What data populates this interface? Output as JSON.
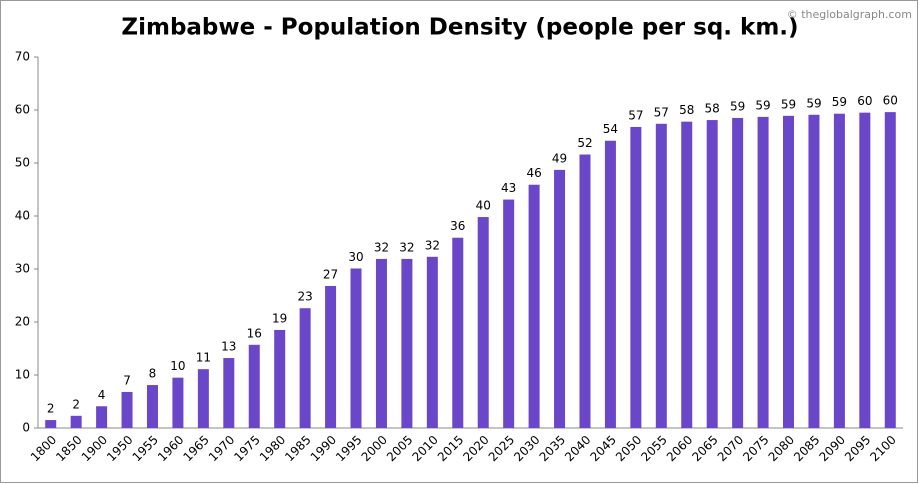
{
  "chart_data": {
    "type": "bar",
    "title": "Zimbabwe - Population Density (people per sq. km.)",
    "watermark": "© theglobalgraph.com",
    "categories": [
      "1800",
      "1850",
      "1900",
      "1950",
      "1955",
      "1960",
      "1965",
      "1970",
      "1975",
      "1980",
      "1985",
      "1990",
      "1995",
      "2000",
      "2005",
      "2010",
      "2015",
      "2020",
      "2025",
      "2030",
      "2035",
      "2040",
      "2045",
      "2050",
      "2055",
      "2060",
      "2065",
      "2070",
      "2075",
      "2080",
      "2085",
      "2090",
      "2095",
      "2100"
    ],
    "values": [
      1.5,
      2.3,
      4.1,
      6.8,
      8.1,
      9.5,
      11.1,
      13.2,
      15.7,
      18.5,
      22.6,
      26.8,
      30.1,
      31.9,
      31.9,
      32.3,
      35.9,
      39.8,
      43.1,
      45.9,
      48.7,
      51.6,
      54.2,
      56.8,
      57.4,
      57.8,
      58.1,
      58.5,
      58.7,
      58.9,
      59.1,
      59.3,
      59.5,
      59.6
    ],
    "value_labels": [
      "2",
      "2",
      "4",
      "7",
      "8",
      "10",
      "11",
      "13",
      "16",
      "19",
      "23",
      "27",
      "30",
      "32",
      "32",
      "32",
      "36",
      "40",
      "43",
      "46",
      "49",
      "52",
      "54",
      "57",
      "57",
      "58",
      "58",
      "59",
      "59",
      "59",
      "59",
      "59",
      "60",
      "60"
    ],
    "color": "#6a46c8",
    "ylim": [
      0,
      70
    ],
    "yticks": [
      0,
      10,
      20,
      30,
      40,
      50,
      60,
      70
    ],
    "grid": false
  }
}
